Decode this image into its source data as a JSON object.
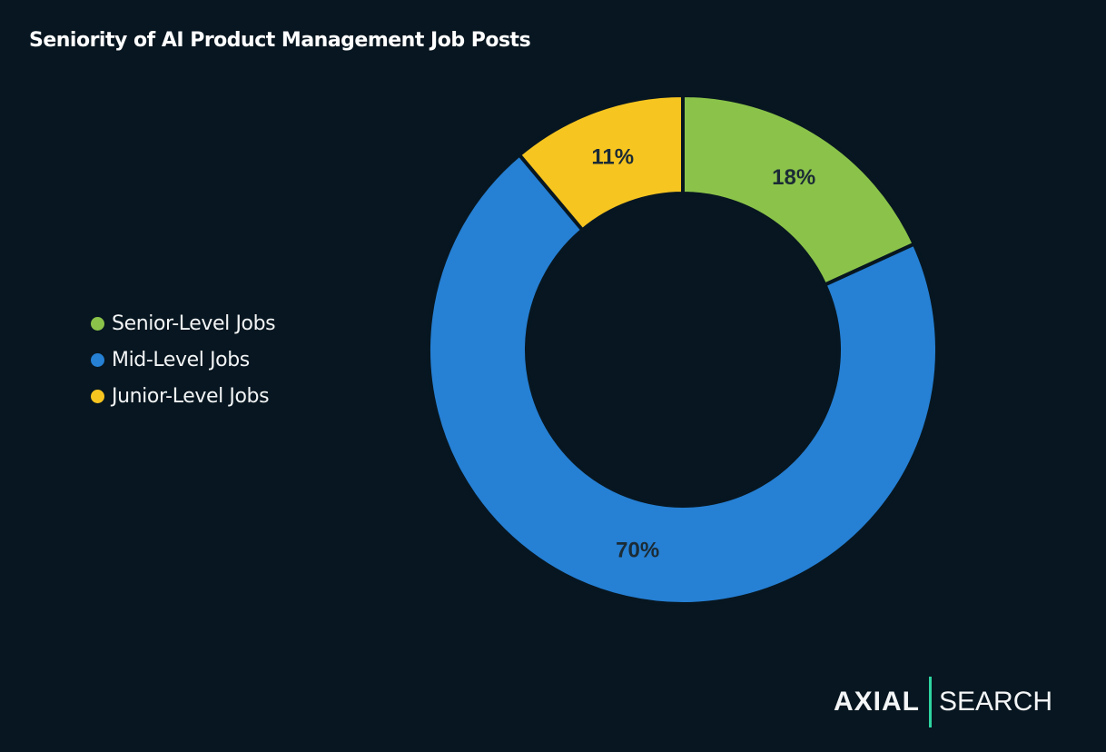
{
  "chart_data": {
    "type": "pie",
    "subtype": "donut",
    "title": "Seniority of AI Product Management Job Posts",
    "categories": [
      "Senior-Level Jobs",
      "Mid-Level Jobs",
      "Junior-Level Jobs"
    ],
    "values": [
      18,
      70,
      11
    ],
    "labels": [
      "18%",
      "70%",
      "11%"
    ],
    "colors": [
      "#8bc34a",
      "#2680d4",
      "#f7c520"
    ],
    "legend_position": "left"
  },
  "branding": {
    "logo_left": "AXIAL",
    "logo_right": "SEARCH",
    "accent": "#2ed3a0"
  }
}
